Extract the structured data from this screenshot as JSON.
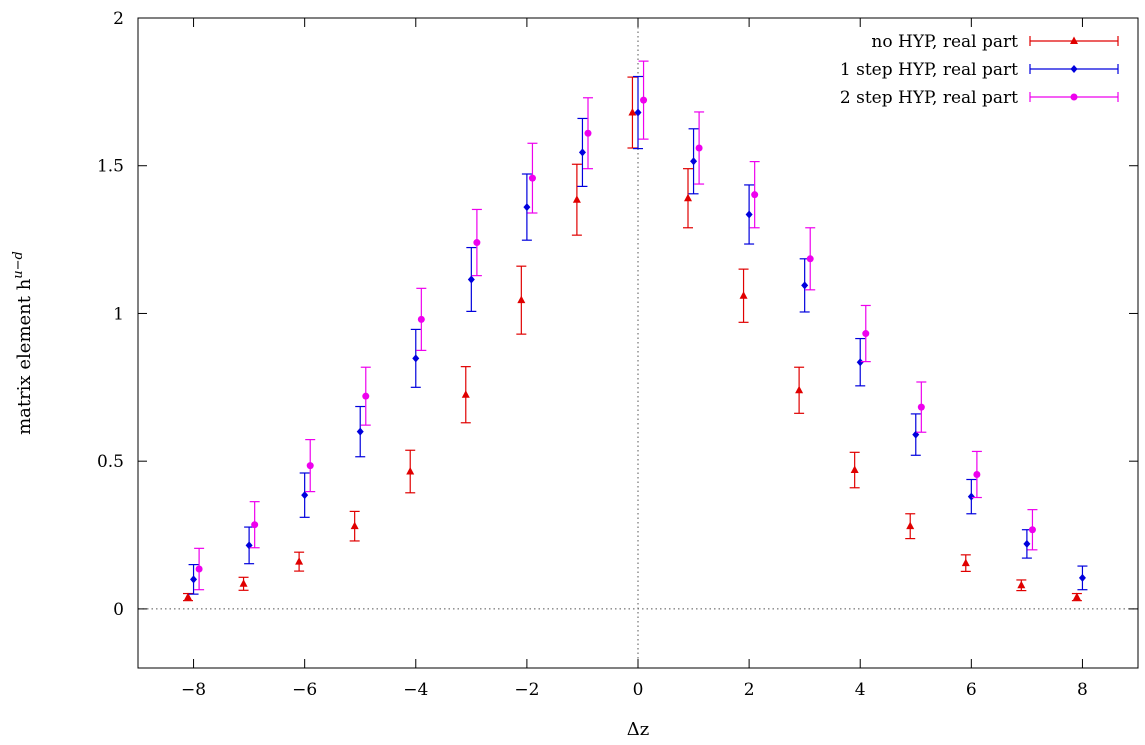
{
  "chart_data": {
    "type": "scatter",
    "title": "",
    "xlabel": "Δz",
    "ylabel": "matrix element h",
    "ylabel_sup": "u−d",
    "xlim": [
      -9,
      9
    ],
    "ylim": [
      -0.2,
      2
    ],
    "xticks": [
      -8,
      -6,
      -4,
      -2,
      0,
      2,
      4,
      6,
      8
    ],
    "xtick_labels": [
      "−8",
      "−6",
      "−4",
      "−2",
      "0",
      "2",
      "4",
      "6",
      "8"
    ],
    "yticks": [
      0,
      0.5,
      1,
      1.5,
      2
    ],
    "ytick_labels": [
      "0",
      "0.5",
      "1",
      "1.5",
      "2"
    ],
    "grid": false,
    "zero_lines": true,
    "legend_position": "top-right",
    "series": [
      {
        "name": "no HYP, real part",
        "color": "#e00000",
        "marker": "triangle",
        "points": [
          {
            "x": -8,
            "y": 0.04,
            "err": 0.012
          },
          {
            "x": -7,
            "y": 0.085,
            "err": 0.022
          },
          {
            "x": -6,
            "y": 0.16,
            "err": 0.032
          },
          {
            "x": -5,
            "y": 0.28,
            "err": 0.05
          },
          {
            "x": -4,
            "y": 0.465,
            "err": 0.072
          },
          {
            "x": -3,
            "y": 0.725,
            "err": 0.095
          },
          {
            "x": -2,
            "y": 1.045,
            "err": 0.115
          },
          {
            "x": -1,
            "y": 1.385,
            "err": 0.12
          },
          {
            "x": 0,
            "y": 1.68,
            "err": 0.12
          },
          {
            "x": 1,
            "y": 1.39,
            "err": 0.1
          },
          {
            "x": 2,
            "y": 1.06,
            "err": 0.09
          },
          {
            "x": 3,
            "y": 0.74,
            "err": 0.078
          },
          {
            "x": 4,
            "y": 0.47,
            "err": 0.06
          },
          {
            "x": 5,
            "y": 0.28,
            "err": 0.042
          },
          {
            "x": 6,
            "y": 0.155,
            "err": 0.028
          },
          {
            "x": 7,
            "y": 0.08,
            "err": 0.018
          },
          {
            "x": 8,
            "y": 0.04,
            "err": 0.012
          }
        ]
      },
      {
        "name": "1 step HYP, real part",
        "color": "#0000dd",
        "marker": "diamond",
        "points": [
          {
            "x": -8,
            "y": 0.1,
            "err": 0.05
          },
          {
            "x": -7,
            "y": 0.215,
            "err": 0.062
          },
          {
            "x": -6,
            "y": 0.385,
            "err": 0.075
          },
          {
            "x": -5,
            "y": 0.6,
            "err": 0.085
          },
          {
            "x": -4,
            "y": 0.848,
            "err": 0.098
          },
          {
            "x": -3,
            "y": 1.115,
            "err": 0.108
          },
          {
            "x": -2,
            "y": 1.36,
            "err": 0.112
          },
          {
            "x": -1,
            "y": 1.545,
            "err": 0.115
          },
          {
            "x": 0,
            "y": 1.68,
            "err": 0.122
          },
          {
            "x": 1,
            "y": 1.515,
            "err": 0.11
          },
          {
            "x": 2,
            "y": 1.335,
            "err": 0.1
          },
          {
            "x": 3,
            "y": 1.095,
            "err": 0.09
          },
          {
            "x": 4,
            "y": 0.835,
            "err": 0.08
          },
          {
            "x": 5,
            "y": 0.59,
            "err": 0.07
          },
          {
            "x": 6,
            "y": 0.38,
            "err": 0.058
          },
          {
            "x": 7,
            "y": 0.22,
            "err": 0.048
          },
          {
            "x": 8,
            "y": 0.105,
            "err": 0.04
          }
        ]
      },
      {
        "name": "2 step HYP, real part",
        "color": "#ee00ee",
        "marker": "circle",
        "points": [
          {
            "x": -8,
            "y": 0.135,
            "err": 0.07
          },
          {
            "x": -7,
            "y": 0.285,
            "err": 0.078
          },
          {
            "x": -6,
            "y": 0.485,
            "err": 0.088
          },
          {
            "x": -5,
            "y": 0.72,
            "err": 0.098
          },
          {
            "x": -4,
            "y": 0.98,
            "err": 0.105
          },
          {
            "x": -3,
            "y": 1.24,
            "err": 0.112
          },
          {
            "x": -2,
            "y": 1.458,
            "err": 0.118
          },
          {
            "x": -1,
            "y": 1.61,
            "err": 0.12
          },
          {
            "x": 0,
            "y": 1.722,
            "err": 0.132
          },
          {
            "x": 1,
            "y": 1.56,
            "err": 0.122
          },
          {
            "x": 2,
            "y": 1.402,
            "err": 0.112
          },
          {
            "x": 3,
            "y": 1.185,
            "err": 0.105
          },
          {
            "x": 4,
            "y": 0.932,
            "err": 0.095
          },
          {
            "x": 5,
            "y": 0.683,
            "err": 0.085
          },
          {
            "x": 6,
            "y": 0.455,
            "err": 0.078
          },
          {
            "x": 7,
            "y": 0.268,
            "err": 0.068
          },
          {
            "x": 8,
            "y": null,
            "err": null
          }
        ]
      }
    ]
  }
}
